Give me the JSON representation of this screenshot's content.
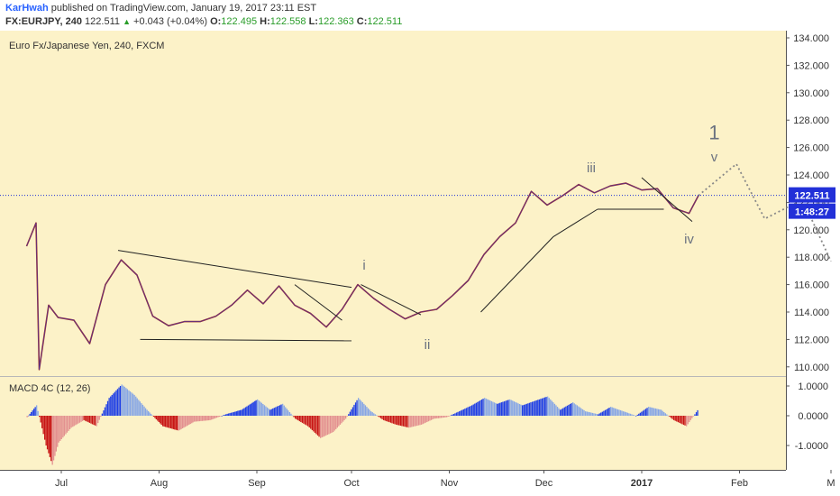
{
  "header": {
    "author": "KarHwah",
    "published_text": "published on TradingView.com, January 19, 2017 23:11 EST",
    "symbol": "FX:EURJPY, 240",
    "last_price": "122.511",
    "change": "+0.043 (+0.04%)",
    "open_label": "O:",
    "open": "122.495",
    "high_label": "H:",
    "high": "122.558",
    "low_label": "L:",
    "low": "122.363",
    "close_label": "C:",
    "close": "122.511"
  },
  "chart_data": [
    {
      "type": "line",
      "title": "Euro Fx/Japanese Yen, 240, FXCM",
      "xlabel": "",
      "ylabel": "",
      "ylim": [
        109.5,
        134.3
      ],
      "y_ticks": [
        "134.000",
        "132.000",
        "130.000",
        "128.000",
        "126.000",
        "124.000",
        "122.000",
        "120.000",
        "118.000",
        "116.000",
        "114.000",
        "112.000",
        "110.000"
      ],
      "x_ticks": [
        "Jul",
        "Aug",
        "Sep",
        "Oct",
        "Nov",
        "Dec",
        "2017",
        "Feb",
        "M"
      ],
      "price_label": "122.511",
      "countdown_label": "1:48:27",
      "series": [
        {
          "x": [
            "Jun 20",
            "Jun 23",
            "Jun 24",
            "Jun 27",
            "Jun 30",
            "Jul 5",
            "Jul 10",
            "Jul 15",
            "Jul 20",
            "Jul 25",
            "Jul 30",
            "Aug 4",
            "Aug 9",
            "Aug 14",
            "Aug 19",
            "Aug 24",
            "Aug 29",
            "Sep 3",
            "Sep 8",
            "Sep 13",
            "Sep 18",
            "Sep 23",
            "Sep 28",
            "Oct 3",
            "Oct 8",
            "Oct 13",
            "Oct 18",
            "Oct 23",
            "Oct 28",
            "Nov 2",
            "Nov 7",
            "Nov 12",
            "Nov 17",
            "Nov 22",
            "Nov 27",
            "Dec 2",
            "Dec 7",
            "Dec 12",
            "Dec 17",
            "Dec 22",
            "Dec 27",
            "Jan 1",
            "Jan 6",
            "Jan 11",
            "Jan 16",
            "Jan 19"
          ],
          "y": [
            118.8,
            120.5,
            109.8,
            114.5,
            113.6,
            113.4,
            111.7,
            116.0,
            117.8,
            116.7,
            113.7,
            113.0,
            113.3,
            113.3,
            113.7,
            114.5,
            115.6,
            114.6,
            115.9,
            114.5,
            113.9,
            112.9,
            114.2,
            116.0,
            115.0,
            114.2,
            113.5,
            114.0,
            114.2,
            115.2,
            116.3,
            118.2,
            119.5,
            120.5,
            122.8,
            121.8,
            122.5,
            123.3,
            122.7,
            123.2,
            123.4,
            122.9,
            123.0,
            121.6,
            121.2,
            122.5
          ]
        }
      ],
      "projection": {
        "x": [
          "Jan 19",
          "Jan 31",
          "Feb 9",
          "Feb 21",
          "Mar 1"
        ],
        "y": [
          122.5,
          124.8,
          120.8,
          122.2,
          117.7
        ]
      },
      "wave_labels": [
        "i",
        "ii",
        "iii",
        "iv",
        "v",
        "1"
      ],
      "indicator": {
        "name": "MACD 4C (12, 26)",
        "y_ticks": [
          "1.0000",
          "0.0000",
          "-1.0000"
        ],
        "ylim": [
          -1.75,
          1.2
        ],
        "colors": {
          "pos_up": "#1e3fe6",
          "pos_down": "#86a6e6",
          "neg_down": "#c81515",
          "neg_up": "#e39090"
        },
        "x": [
          "Jun 20",
          "Jun 23",
          "Jun 26",
          "Jun 28",
          "Jun 30",
          "Jul 4",
          "Jul 8",
          "Jul 12",
          "Jul 16",
          "Jul 20",
          "Jul 24",
          "Jul 28",
          "Aug 2",
          "Aug 7",
          "Aug 12",
          "Aug 17",
          "Aug 22",
          "Aug 27",
          "Sep 1",
          "Sep 5",
          "Sep 9",
          "Sep 13",
          "Sep 17",
          "Sep 21",
          "Sep 25",
          "Sep 29",
          "Oct 3",
          "Oct 7",
          "Oct 11",
          "Oct 15",
          "Oct 19",
          "Oct 23",
          "Oct 27",
          "Oct 31",
          "Nov 4",
          "Nov 8",
          "Nov 12",
          "Nov 16",
          "Nov 20",
          "Nov 24",
          "Nov 28",
          "Dec 2",
          "Dec 6",
          "Dec 10",
          "Dec 14",
          "Dec 18",
          "Dec 22",
          "Dec 26",
          "Dec 30",
          "Jan 3",
          "Jan 7",
          "Jan 11",
          "Jan 15",
          "Jan 19"
        ],
        "values": [
          -0.05,
          0.35,
          -1.0,
          -1.65,
          -0.9,
          -0.4,
          -0.15,
          -0.35,
          0.6,
          1.05,
          0.7,
          0.2,
          -0.35,
          -0.5,
          -0.2,
          -0.15,
          0.05,
          0.2,
          0.55,
          0.2,
          0.4,
          -0.1,
          -0.35,
          -0.75,
          -0.55,
          -0.1,
          0.6,
          0.15,
          -0.15,
          -0.3,
          -0.4,
          -0.3,
          -0.1,
          -0.05,
          0.15,
          0.35,
          0.6,
          0.4,
          0.55,
          0.35,
          0.5,
          0.65,
          0.2,
          0.45,
          0.15,
          0.05,
          0.3,
          0.15,
          0.0,
          0.3,
          0.2,
          -0.15,
          -0.35,
          0.25
        ]
      }
    }
  ]
}
